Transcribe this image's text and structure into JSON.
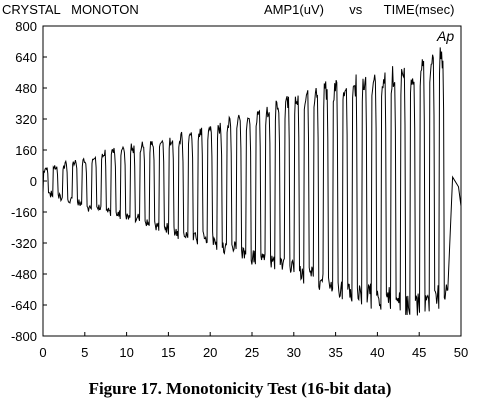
{
  "header": {
    "left": "CRYSTAL   MONOTON",
    "right": "AMP1(uV)       vs      TIME(msec)"
  },
  "caption": "Figure 17.  Monotonicity Test (16-bit data)",
  "chart_data": {
    "type": "line",
    "title": "",
    "xlabel": "TIME(msec)",
    "ylabel": "AMP1(uV)",
    "xlim": [
      0,
      50
    ],
    "ylim": [
      -800,
      800
    ],
    "grid": false,
    "annotation": "Ap",
    "xticks": [
      0,
      5,
      10,
      15,
      20,
      25,
      30,
      35,
      40,
      45,
      50
    ],
    "yticks": [
      800,
      640,
      480,
      320,
      160,
      0,
      -160,
      -320,
      -480,
      -640,
      -800
    ],
    "series": [
      {
        "name": "",
        "cycles": 42,
        "envelope_upper": [
          [
            0,
            60
          ],
          [
            5,
            120
          ],
          [
            10,
            180
          ],
          [
            15,
            220
          ],
          [
            20,
            290
          ],
          [
            25,
            360
          ],
          [
            30,
            450
          ],
          [
            35,
            520
          ],
          [
            40,
            570
          ],
          [
            45,
            610
          ],
          [
            48.5,
            720
          ]
        ],
        "envelope_lower": [
          [
            0,
            -60
          ],
          [
            5,
            -140
          ],
          [
            10,
            -190
          ],
          [
            15,
            -270
          ],
          [
            20,
            -330
          ],
          [
            25,
            -420
          ],
          [
            30,
            -500
          ],
          [
            35,
            -600
          ],
          [
            40,
            -660
          ],
          [
            45,
            -690
          ],
          [
            48.5,
            -640
          ]
        ],
        "tail": [
          [
            49,
            20
          ],
          [
            49.7,
            -30
          ],
          [
            50,
            -130
          ]
        ]
      }
    ]
  }
}
